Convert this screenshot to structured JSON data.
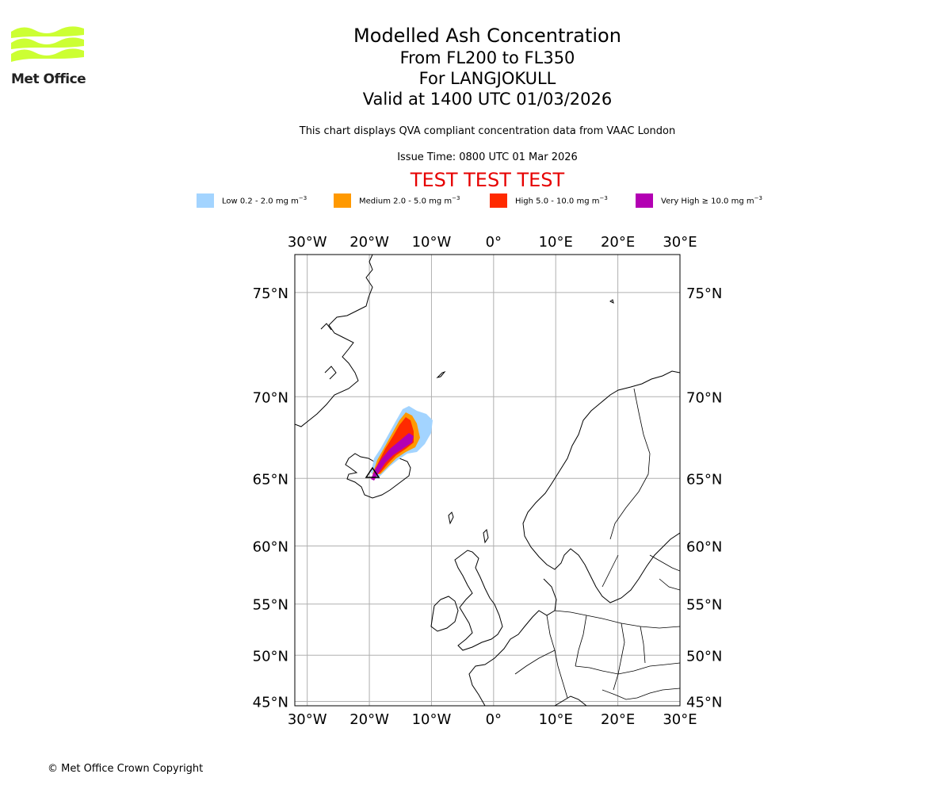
{
  "logo": {
    "text": "Met Office",
    "color": "#ccff33"
  },
  "title": {
    "line1": "Modelled Ash Concentration",
    "line2": "From FL200 to FL350",
    "line3": "For LANGJOKULL",
    "line4": "Valid at 1400 UTC 01/03/2026"
  },
  "subtitle": "This chart displays QVA compliant concentration data from VAAC London",
  "issue_time": "Issue Time: 0800 UTC 01 Mar 2026",
  "test_banner": "TEST TEST TEST",
  "legend": [
    {
      "label": "Low 0.2 - 2.0 mg m",
      "color": "#a3d4ff"
    },
    {
      "label": "Medium 2.0 - 5.0 mg m",
      "color": "#ff9900"
    },
    {
      "label": "High 5.0 - 10.0 mg m",
      "color": "#ff2a00"
    },
    {
      "label": "Very High ≥ 10.0 mg m",
      "color": "#b300b3"
    }
  ],
  "legend_unit_exp": "−3",
  "map": {
    "lon_labels": [
      "30°W",
      "20°W",
      "10°W",
      "0°",
      "10°E",
      "20°E",
      "30°E"
    ],
    "lat_labels": [
      "75°N",
      "70°N",
      "65°N",
      "60°N",
      "55°N",
      "50°N",
      "45°N"
    ],
    "lon_values": [
      -30,
      -20,
      -10,
      0,
      10,
      20,
      30
    ],
    "lat_values": [
      75,
      70,
      65,
      60,
      55,
      50,
      45
    ],
    "extent": {
      "lon_min": -32,
      "lon_max": 30,
      "lat_min": 44.5,
      "lat_max": 76.5
    },
    "volcano": {
      "name": "LANGJOKULL",
      "lon": -19.6,
      "lat": 64.7
    }
  },
  "copyright": "© Met Office Crown Copyright"
}
